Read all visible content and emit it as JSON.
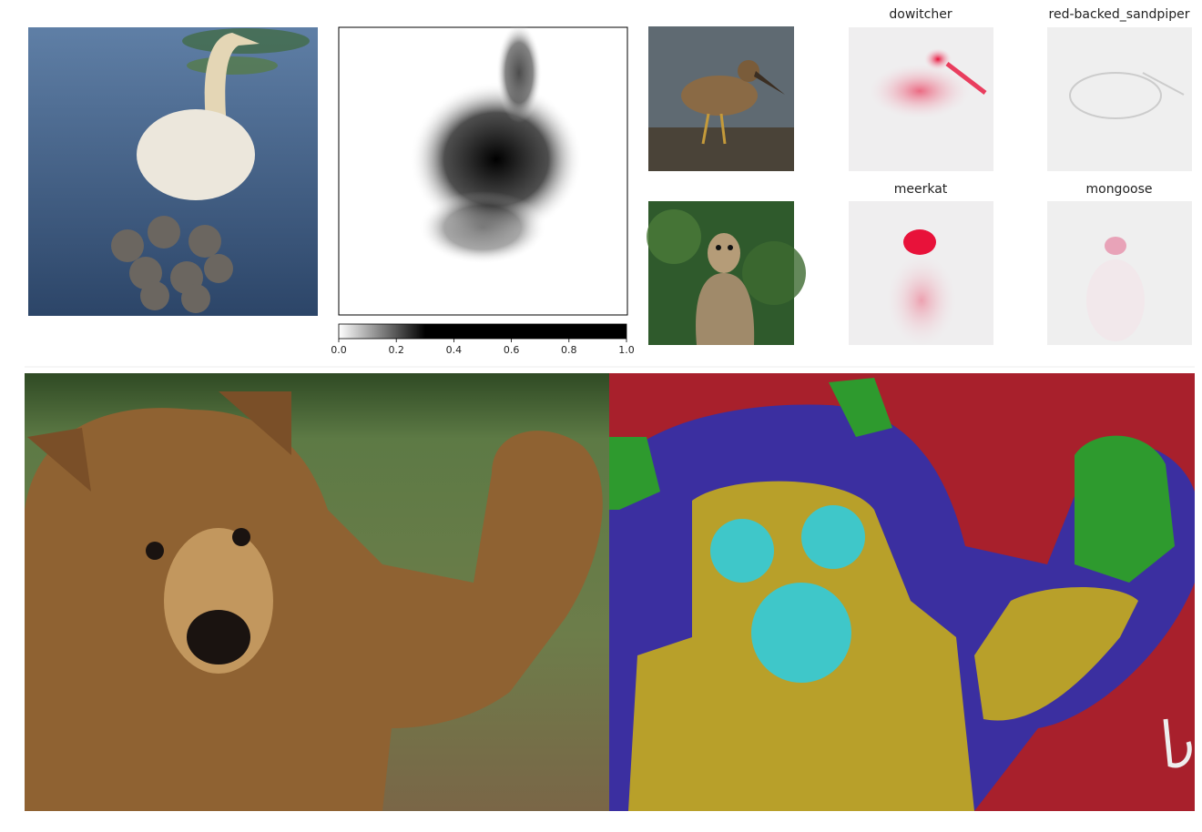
{
  "colorbar": {
    "lim": [
      0,
      1
    ],
    "ticks": [
      {
        "value": 0,
        "label": "0.0"
      },
      {
        "value": 0.2,
        "label": "0.2"
      },
      {
        "value": 0.4,
        "label": "0.4"
      },
      {
        "value": 0.6,
        "label": "0.6"
      },
      {
        "value": 0.8,
        "label": "0.8"
      },
      {
        "value": 1,
        "label": "1.0"
      }
    ]
  },
  "panels": [
    {
      "title": "dowitcher"
    },
    {
      "title": "red-backed_sandpiper"
    },
    {
      "title": "meerkat"
    },
    {
      "title": "mongoose"
    }
  ]
}
